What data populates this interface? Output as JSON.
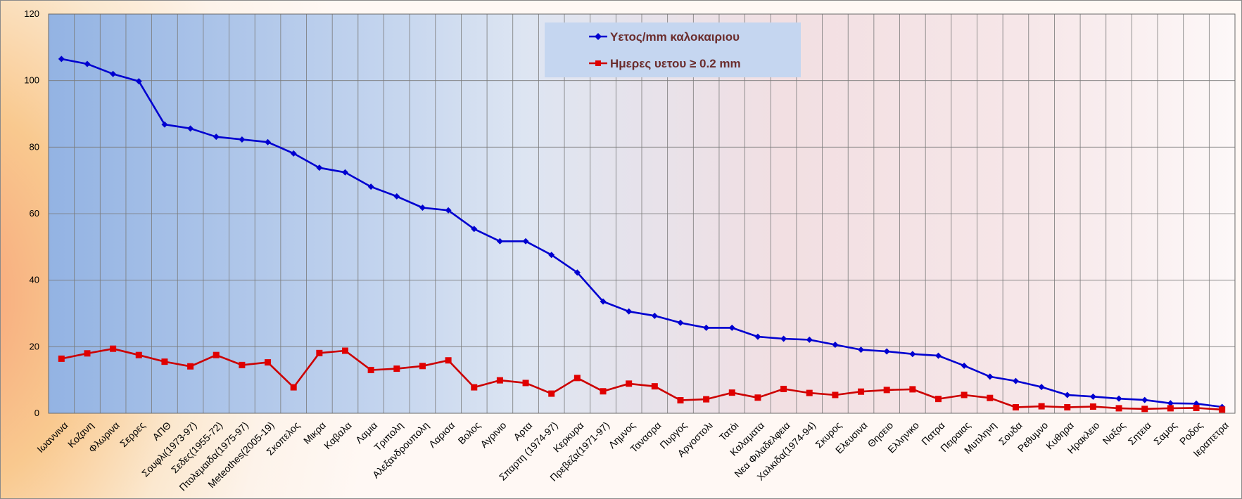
{
  "chart_data": {
    "type": "line",
    "title": "",
    "xlabel": "",
    "ylabel": "",
    "ylim": [
      0,
      120
    ],
    "yticks": [
      0,
      20,
      40,
      60,
      80,
      100,
      120
    ],
    "grid": true,
    "legend_position": "top-center",
    "categories": [
      "Ιωαννινα",
      "Κοζανη",
      "Φλωρινα",
      "Σερρες",
      "ΑΠΘ",
      "Σουφλι(1973-97)",
      "Σεδες(1955-72)",
      "Πτολεμαιδα(1975-97)",
      "Meteothes(2005-19)",
      "Σκοπελος",
      "Μικρα",
      "Καβαλα",
      "Λαμια",
      "Τριπολη",
      "Αλεξανδρουπολη",
      "Λαρισα",
      "Βολος",
      "Αγρινιο",
      "Αρτα",
      "Σπαρτη (1974-97)",
      "Κερκυρα",
      "Πρεβεζα(1971-97)",
      "Λημνος",
      "Τανασρα",
      "Πυργος",
      "Αργοστολι",
      "Τατόι",
      "Καλαματα",
      "Νεα Φιλαδελφεια",
      "Χαλκιδα(1974-94)",
      "Σκυρος",
      "Ελευσινα",
      "Θησειο",
      "Ελληνικο",
      "Πατρα",
      "Πειραιας",
      "Μυτιληνη",
      "Σουδα",
      "Ρεθυμνο",
      "Κυθηρα",
      "Ηρακλειο",
      "Ναξος",
      "Σητεια",
      "Σαμος",
      "Ροδος",
      "Ιεραπετρα"
    ],
    "series": [
      {
        "name": "Υετος/mm καλοκαιριου",
        "color": "#0000d0",
        "marker": "diamond",
        "values": [
          106.5,
          105,
          102,
          99.8,
          86.8,
          85.6,
          83.1,
          82.3,
          81.5,
          78.1,
          73.8,
          72.4,
          68.1,
          65.2,
          61.8,
          61,
          55.4,
          51.7,
          51.7,
          47.6,
          42.3,
          33.6,
          30.6,
          29.3,
          27.2,
          25.7,
          25.7,
          23,
          22.4,
          22.1,
          20.6,
          19.1,
          18.6,
          17.8,
          17.3,
          14.3,
          11,
          9.7,
          7.9,
          5.5,
          5,
          4.4,
          4,
          3,
          2.9,
          1.9
        ]
      },
      {
        "name": "Ημερες υετου ≥ 0.2 mm",
        "color": "#cc0000",
        "marker": "square",
        "values": [
          16.4,
          18,
          19.4,
          17.5,
          15.5,
          14.1,
          17.5,
          14.5,
          15.3,
          7.8,
          18.1,
          18.8,
          13,
          13.4,
          14.2,
          15.9,
          7.8,
          9.9,
          9.1,
          5.9,
          10.6,
          6.6,
          8.9,
          8.1,
          3.9,
          4.2,
          6.2,
          4.7,
          7.3,
          6.1,
          5.5,
          6.5,
          7,
          7.2,
          4.3,
          5.5,
          4.6,
          1.8,
          2.1,
          1.8,
          2,
          1.5,
          1.3,
          1.5,
          1.6,
          1.1
        ]
      }
    ]
  }
}
